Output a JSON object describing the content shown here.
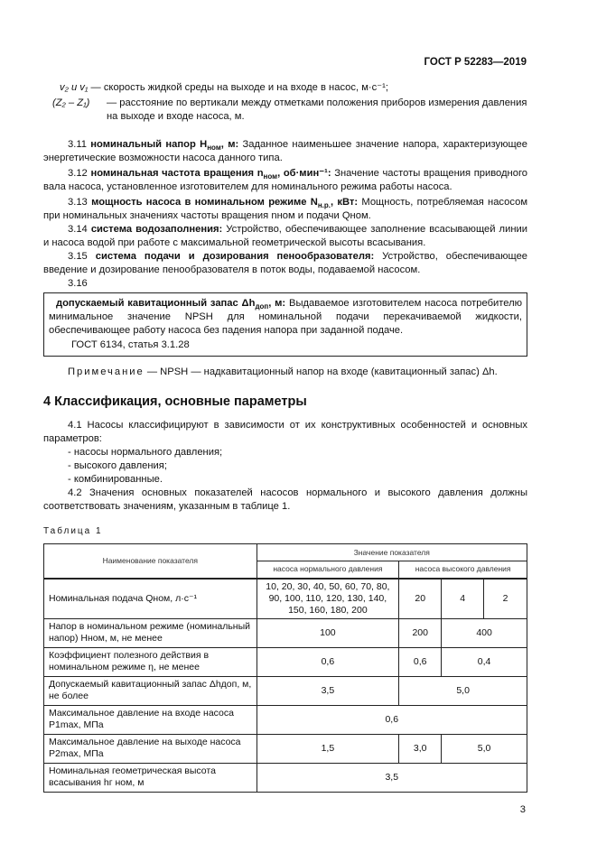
{
  "header": {
    "doc_id": "ГОСТ Р 52283—2019"
  },
  "defs": [
    {
      "symbol": "v₂ и v₁",
      "text": "— скорость жидкой среды на выходе и на входе в насос, м·с⁻¹;"
    },
    {
      "symbol": "(Z₂ – Z₁)",
      "text": "— расстояние по вертикали между отметками положения приборов измерения давления на выходе и входе насоса, м."
    }
  ],
  "terms": [
    {
      "num": "3.11",
      "term": "номинальный напор H",
      "sub": "ном",
      "unit": ", м:",
      "text": " Заданное наименьшее значение напора, характеризующее энергетические возможности насоса данного типа."
    },
    {
      "num": "3.12",
      "term": "номинальная частота вращения n",
      "sub": "ном",
      "unit": ", об·мин⁻¹:",
      "text": " Значение частоты вращения приводного вала насоса, установленное изготовителем для номинального режима работы насоса."
    },
    {
      "num": "3.13",
      "term": "мощность насоса в номинальном режиме N",
      "sub": "н.р.",
      "unit": ", кВт:",
      "text": " Мощность, потребляемая насосом при номинальных значениях частоты вращения nном и подачи Qном."
    },
    {
      "num": "3.14",
      "term": "система водозаполнения:",
      "text": " Устройство, обеспечивающее заполнение всасывающей линии и насоса водой при работе с максимальной геометрической высоты всасывания."
    },
    {
      "num": "3.15",
      "term": "система подачи и дозирования пенообразователя:",
      "text": " Устройство, обеспечивающее введение и дозирование пенообразователя в поток воды, подаваемой насосом."
    },
    {
      "num": "3.16"
    }
  ],
  "box": {
    "term": "допускаемый кавитационный запас Δh",
    "sub": "доп",
    "unit": ", м:",
    "text": " Выдаваемое изготовителем насоса потребителю минимальное значение NPSH для номинальной подачи перекачиваемой жидкости, обеспечивающее работу насоса без падения напора при заданной подаче.",
    "source": "ГОСТ 6134, статья 3.1.28"
  },
  "note": {
    "label": "Примечание",
    "text": " — NPSH — надкавитационный напор на входе (кавитационный запас) Δh."
  },
  "section": {
    "title": "4 Классификация, основные параметры",
    "p1": "4.1 Насосы классифицируют в зависимости от их конструктивных особенностей и основных параметров:",
    "items": [
      "- насосы нормального давления;",
      "- высокого давления;",
      "- комбинированные."
    ],
    "p2": "4.2 Значения основных показателей насосов нормального и высокого давления должны соответствовать значениям, указанным в таблице 1."
  },
  "table": {
    "caption": "Таблица 1",
    "head": {
      "name": "Наименование показателя",
      "value": "Значение показателя",
      "normal": "насоса нормального давления",
      "high": "насоса высокого давления"
    },
    "rows": [
      {
        "name": "Номинальная подача Qном, л·с⁻¹",
        "normal": "10, 20, 30, 40, 50, 60, 70, 80, 90, 100, 110, 120, 130, 140, 150, 160, 180, 200",
        "high": [
          "20",
          "4",
          "2"
        ]
      },
      {
        "name": "Напор в номинальном режиме (номинальный напор) Hном, м, не менее",
        "normal": "100",
        "high": [
          "200",
          "400"
        ]
      },
      {
        "name": "Коэффициент полезного действия в номинальном режиме η, не менее",
        "normal": "0,6",
        "high": [
          "0,6",
          "0,4"
        ]
      },
      {
        "name": "Допускаемый кавитационный запас Δhдоп, м, не более",
        "normal": "3,5",
        "high": [
          "5,0"
        ]
      },
      {
        "name": "Максимальное давление на входе насоса P1max, МПа",
        "all": "0,6"
      },
      {
        "name": "Максимальное давление на выходе насоса P2max, МПа",
        "normal": "1,5",
        "high": [
          "3,0",
          "5,0"
        ]
      },
      {
        "name": "Номинальная геометрическая высота всасывания hг ном, м",
        "all": "3,5"
      }
    ]
  },
  "page_number": "3"
}
